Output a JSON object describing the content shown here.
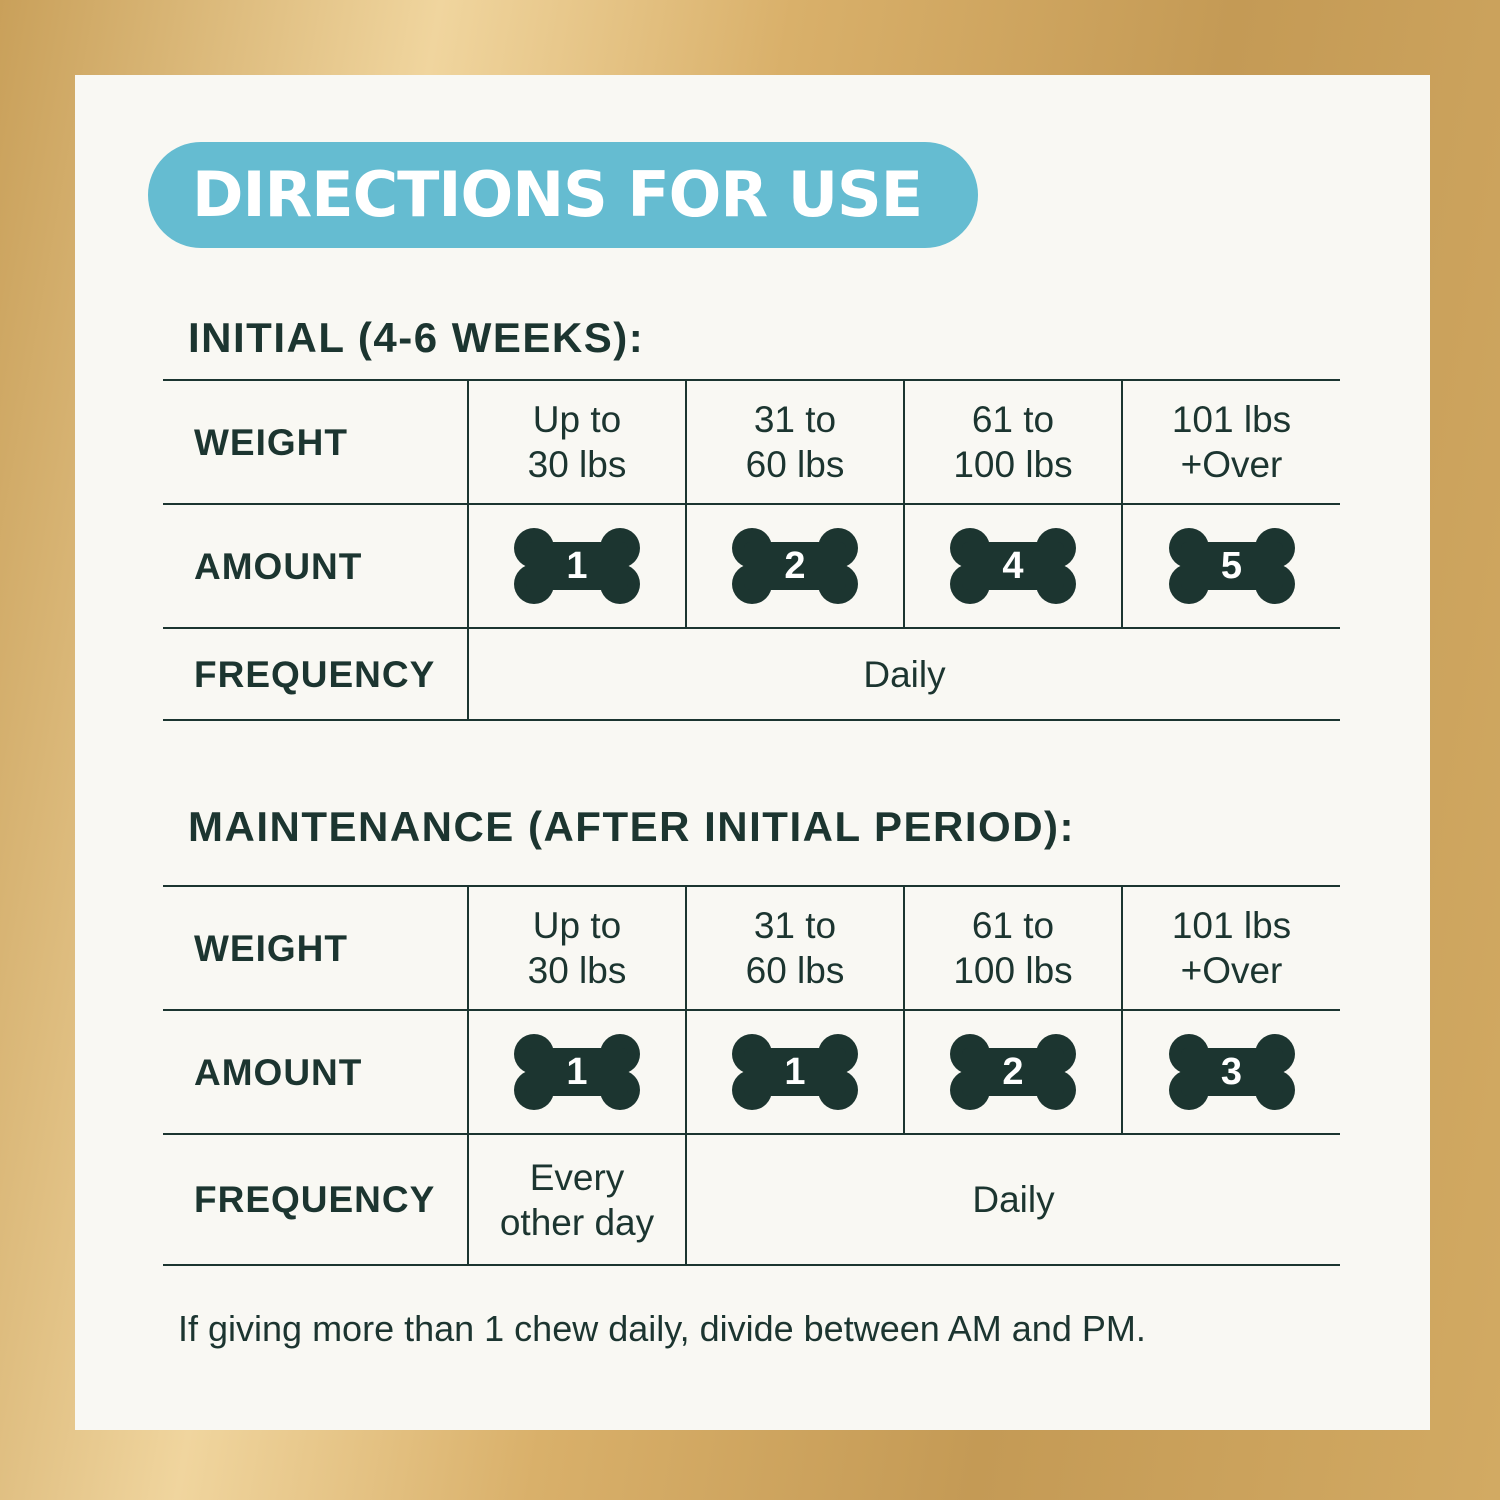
{
  "title": "DIRECTIONS FOR USE",
  "colors": {
    "accent": "#65bcd1",
    "ink": "#1c3530",
    "panel": "#f9f8f3",
    "frame": "#d2aa63"
  },
  "initial": {
    "heading": "INITIAL (4-6 WEEKS):",
    "weight_label": "WEIGHT",
    "amount_label": "AMOUNT",
    "frequency_label": "FREQUENCY",
    "weights": [
      [
        "Up to",
        "30 lbs"
      ],
      [
        "31 to",
        "60 lbs"
      ],
      [
        "61 to",
        "100 lbs"
      ],
      [
        "101 lbs",
        "+Over"
      ]
    ],
    "amounts": [
      "1",
      "2",
      "4",
      "5"
    ],
    "frequency": "Daily"
  },
  "maintenance": {
    "heading": "MAINTENANCE (AFTER INITIAL PERIOD):",
    "weight_label": "WEIGHT",
    "amount_label": "AMOUNT",
    "frequency_label": "FREQUENCY",
    "weights": [
      [
        "Up to",
        "30 lbs"
      ],
      [
        "31 to",
        "60 lbs"
      ],
      [
        "61 to",
        "100 lbs"
      ],
      [
        "101 lbs",
        "+Over"
      ]
    ],
    "amounts": [
      "1",
      "1",
      "2",
      "3"
    ],
    "frequency_first": [
      "Every",
      "other day"
    ],
    "frequency": "Daily"
  },
  "footer": "If giving more than 1 chew daily, divide between AM and PM."
}
